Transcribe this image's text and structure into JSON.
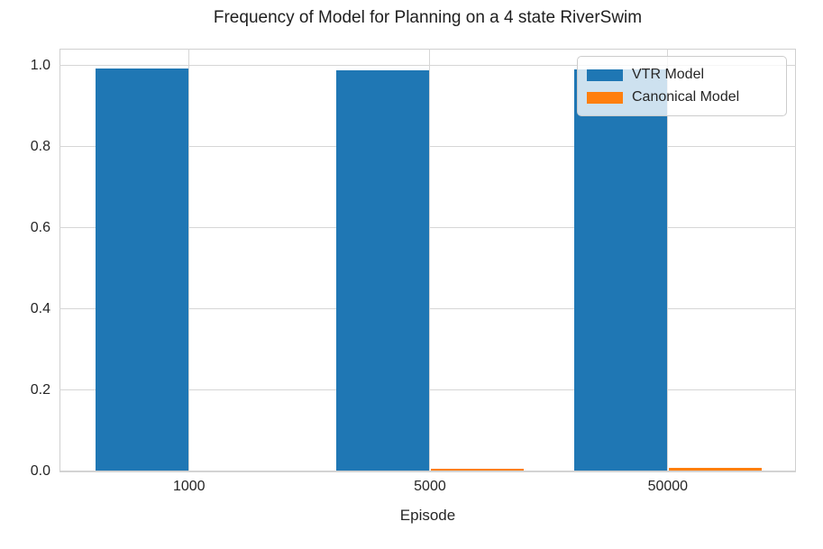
{
  "title": "Frequency of Model for Planning on a 4 state RiverSwim",
  "chart_data": {
    "type": "bar",
    "title": "Frequency of Model for Planning on a 4 state RiverSwim",
    "xlabel": "Episode",
    "ylabel": "",
    "categories": [
      "1000",
      "5000",
      "50000"
    ],
    "series": [
      {
        "name": "VTR Model",
        "color": "#1f77b4",
        "values": [
          0.993,
          0.988,
          0.99
        ]
      },
      {
        "name": "Canonical Model",
        "color": "#ff7f0e",
        "values": [
          0.001,
          0.007,
          0.008
        ]
      }
    ],
    "ylim": [
      0,
      1.042
    ],
    "yticks": [
      0.0,
      0.2,
      0.4,
      0.6,
      0.8,
      1.0
    ],
    "ytick_labels": [
      "0.0",
      "0.2",
      "0.4",
      "0.6",
      "0.8",
      "1.0"
    ],
    "grid": true,
    "legend_position": "upper right",
    "colors": {
      "grid": "#d6d6d6",
      "spine": "#d0d0d0",
      "text": "#262626",
      "vtr_blue": "#1f77b4",
      "canonical_orange": "#ff7f0e"
    }
  }
}
